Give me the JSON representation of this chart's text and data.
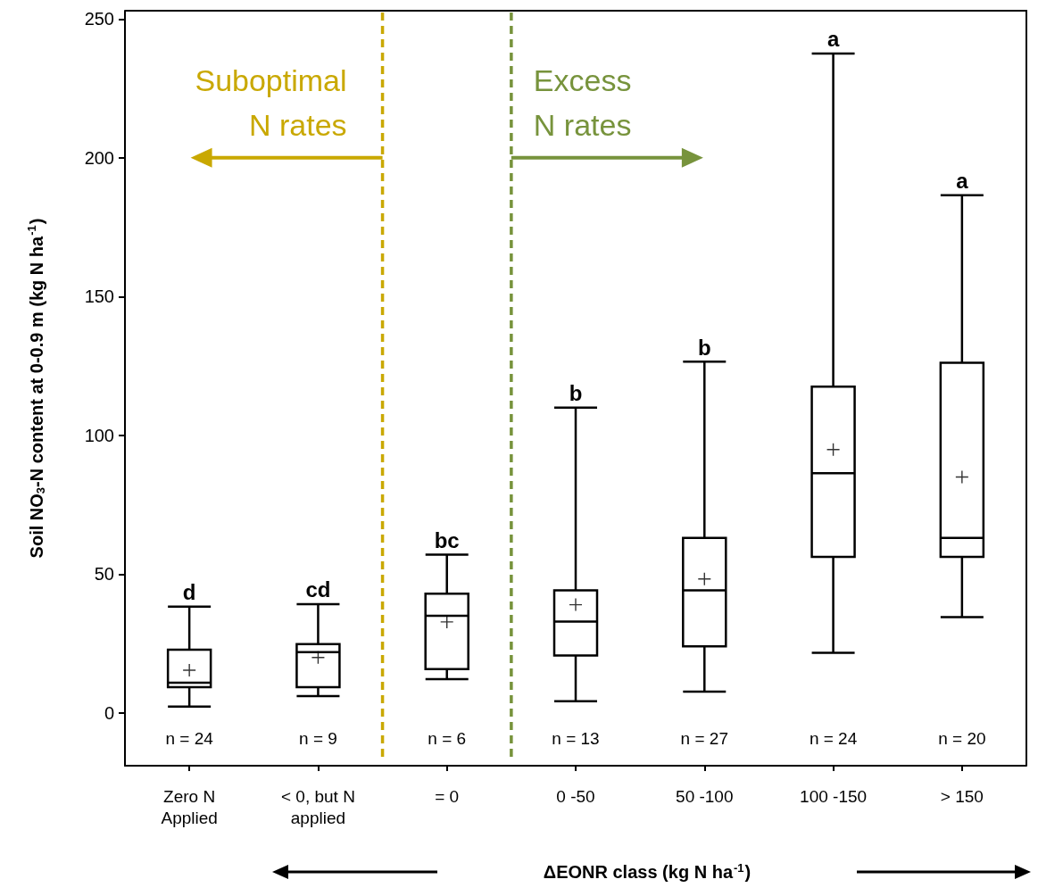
{
  "chart_data": {
    "type": "box",
    "categories": [
      "Zero N\nApplied",
      "< 0, but N\napplied",
      "= 0",
      "0 -50",
      "50 -100",
      "100 -150",
      "> 150"
    ],
    "xlabel": "ΔEONR class (kg N ha$^{-1}$)",
    "ylabel": "Soil NO$_{3}$-N content at 0-0.9 m (kg N ha$^{-1}$)",
    "ylim": [
      -19,
      253
    ],
    "yticks": [
      0,
      50,
      100,
      150,
      200,
      250
    ],
    "series": [
      {
        "color": "#000000",
        "boxes": [
          {
            "low": 2.3,
            "q1": 9.3,
            "median": 10.9,
            "q3": 22.8,
            "high": 38.3,
            "mean": 15.4
          },
          {
            "low": 6.1,
            "q1": 9.3,
            "median": 21.9,
            "q3": 24.8,
            "high": 39.2,
            "mean": 20
          },
          {
            "low": 12.2,
            "q1": 15.8,
            "median": 35,
            "q3": 43,
            "high": 57,
            "mean": 32.8
          },
          {
            "low": 4.2,
            "q1": 20.7,
            "median": 32.9,
            "q3": 44.2,
            "high": 110,
            "mean": 39
          },
          {
            "low": 7.7,
            "q1": 24,
            "median": 44.2,
            "q3": 63.1,
            "high": 126.6,
            "mean": 48.3
          },
          {
            "low": 21.7,
            "q1": 56.2,
            "median": 86.4,
            "q3": 117.6,
            "high": 237.6,
            "mean": 94.9
          },
          {
            "low": 34.5,
            "q1": 56.2,
            "median": 63.1,
            "q3": 126.2,
            "high": 186.5,
            "mean": 85
          }
        ]
      }
    ],
    "annotations": [
      "Suboptimal\nN rates",
      "Excess\nN rates",
      {
        "text": "d",
        "x": "Zero N\nApplied",
        "y": 38.3
      },
      {
        "text": "cd",
        "x": "< 0, but N\napplied",
        "y": 39.2
      },
      {
        "text": "bc",
        "x": "= 0",
        "y": 57
      },
      {
        "text": "b",
        "x": "0 -50",
        "y": 110
      },
      {
        "text": "b",
        "x": "50 -100",
        "y": 126.6
      },
      {
        "text": "a",
        "x": "100 -150",
        "y": 237.6
      },
      {
        "text": "a",
        "x": "> 150",
        "y": 186.5
      },
      "n = 24",
      "n = 9",
      "n = 6",
      "n = 13",
      "n = 27",
      "n = 24",
      "n = 20"
    ]
  }
}
